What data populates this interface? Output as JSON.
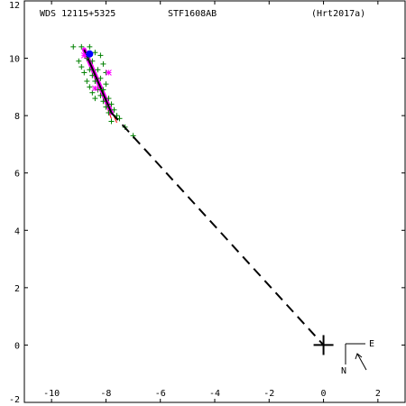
{
  "header": {
    "wds": "WDS 12115+5325",
    "pair": "STF1608AB",
    "ref": "(Hrt2017a)"
  },
  "compass": {
    "east": "E",
    "north": "N"
  },
  "colors": {
    "axis": "#000000",
    "obs_plus": "#008000",
    "obs_star": "#ff00ff",
    "orbit_current": "#ff00ff",
    "orbit_ref": "#0000ff",
    "residual": "#ff0000",
    "path": "#000000"
  },
  "chart_data": {
    "type": "scatter",
    "xlim": [
      -11,
      3
    ],
    "ylim": [
      -2,
      12
    ],
    "x_ticks": [
      -10,
      -8,
      -6,
      -4,
      -2,
      0,
      2
    ],
    "y_ticks": [
      12,
      10,
      8,
      6,
      4,
      2,
      0,
      -2
    ],
    "x_tick_labels": [
      "-10",
      "-8",
      "-6",
      "-4",
      "-2",
      "0",
      "2"
    ],
    "y_tick_labels": [
      "12",
      "10",
      "8",
      "6",
      "4",
      "2",
      "0",
      "-2"
    ],
    "primary": {
      "x": 0,
      "y": 0
    },
    "path_to_primary": {
      "from": [
        -7.8,
        8.1
      ],
      "to": [
        0,
        0
      ]
    },
    "orbit_segment": {
      "from": [
        -8.8,
        10.3
      ],
      "to": [
        -7.8,
        8.1
      ]
    },
    "series": [
      {
        "marker": "plus",
        "points": [
          [
            -9.2,
            10.4
          ],
          [
            -8.9,
            10.4
          ],
          [
            -8.6,
            10.4
          ],
          [
            -8.4,
            10.2
          ],
          [
            -8.2,
            10.1
          ],
          [
            -8.7,
            10.0
          ],
          [
            -9.0,
            9.9
          ],
          [
            -8.5,
            9.9
          ],
          [
            -8.1,
            9.8
          ],
          [
            -8.9,
            9.7
          ],
          [
            -8.6,
            9.6
          ],
          [
            -8.3,
            9.6
          ],
          [
            -8.0,
            9.5
          ],
          [
            -8.8,
            9.5
          ],
          [
            -8.5,
            9.4
          ],
          [
            -8.2,
            9.3
          ],
          [
            -8.7,
            9.2
          ],
          [
            -8.4,
            9.2
          ],
          [
            -8.0,
            9.1
          ],
          [
            -8.6,
            9.0
          ],
          [
            -8.3,
            8.9
          ],
          [
            -8.1,
            8.9
          ],
          [
            -8.5,
            8.8
          ],
          [
            -8.2,
            8.7
          ],
          [
            -7.9,
            8.6
          ],
          [
            -8.4,
            8.6
          ],
          [
            -8.1,
            8.5
          ],
          [
            -7.8,
            8.4
          ],
          [
            -8.0,
            8.3
          ],
          [
            -7.7,
            8.2
          ],
          [
            -7.9,
            8.1
          ],
          [
            -7.6,
            8.0
          ],
          [
            -7.5,
            7.9
          ],
          [
            -7.3,
            7.6
          ],
          [
            -7.8,
            7.8
          ],
          [
            -7.0,
            7.3
          ]
        ]
      },
      {
        "marker": "star",
        "points": [
          [
            -7.9,
            9.5
          ],
          [
            -8.4,
            8.95
          ],
          [
            -8.8,
            10.1
          ]
        ]
      },
      {
        "marker": "dot",
        "points": [
          [
            -8.6,
            10.15
          ]
        ]
      }
    ],
    "residual_segments": [
      [
        [
          -8.8,
          10.25
        ],
        [
          -7.8,
          7.9
        ]
      ],
      [
        [
          -8.7,
          10.15
        ],
        [
          -7.6,
          7.75
        ]
      ]
    ]
  }
}
